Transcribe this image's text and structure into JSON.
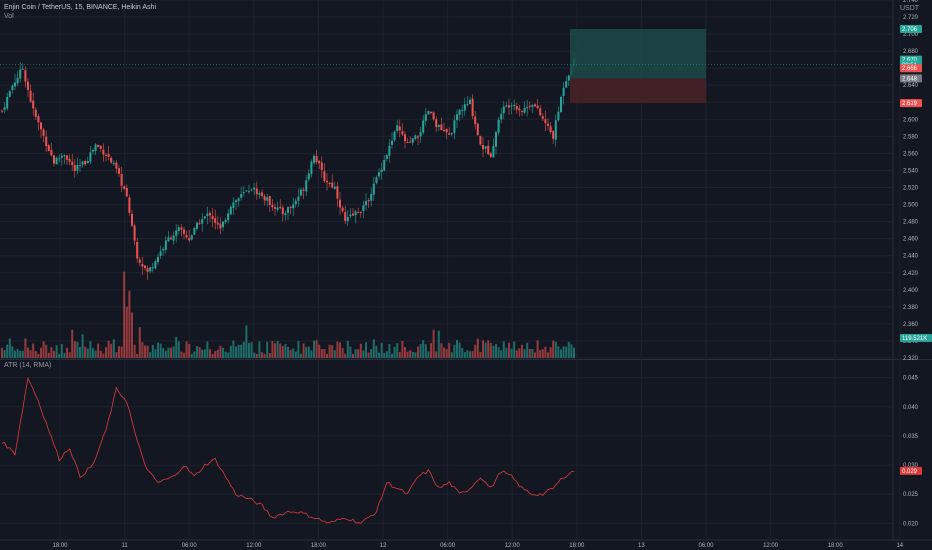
{
  "header": {
    "symbol_line": "Enjin Coin / TetherUS, 15, BINANCE, Heikin Ashi",
    "volume_label": "Vol",
    "currency": "USDT",
    "atr_label": "ATR (14, RMA)"
  },
  "colors": {
    "background": "#131722",
    "up": "#26a69a",
    "down": "#ef5350",
    "grid": "#1e222d",
    "atr_line": "#e03b3b",
    "profit_zone": "#1d4a48",
    "loss_zone": "#4a2327"
  },
  "price_axis": {
    "ticks": [
      "2.740",
      "2.720",
      "2.700",
      "2.680",
      "2.660",
      "2.640",
      "2.620",
      "2.600",
      "2.580",
      "2.560",
      "2.540",
      "2.520",
      "2.500",
      "2.480",
      "2.460",
      "2.440",
      "2.420",
      "2.400",
      "2.380",
      "2.360",
      "2.340",
      "2.320"
    ],
    "badges": [
      {
        "text": "2.706",
        "color": "#26a69a",
        "value": 2.706
      },
      {
        "text": "2.670",
        "color": "#26a69a",
        "value": 2.67
      },
      {
        "text": "08:51",
        "color": "#26a69a",
        "value": 2.664
      },
      {
        "text": "2.666",
        "color": "#ef5350",
        "value": 2.66
      },
      {
        "text": "2.648",
        "color": "#787b86",
        "value": 2.648
      },
      {
        "text": "2.619",
        "color": "#ef5350",
        "value": 2.619
      }
    ],
    "volume_badge": {
      "text": "119.521K",
      "color": "#26a69a"
    }
  },
  "atr_axis": {
    "ticks": [
      "0.045",
      "0.040",
      "0.035",
      "0.030",
      "0.025",
      "0.020"
    ],
    "badge": {
      "text": "0.029",
      "color": "#e03b3b",
      "value": 0.029
    }
  },
  "time_axis": {
    "labels": [
      "18:00",
      "11",
      "06:00",
      "12:00",
      "18:00",
      "12",
      "06:00",
      "12:00",
      "18:00",
      "13",
      "06:00",
      "12:00",
      "18:00",
      "14"
    ]
  },
  "chart_data": [
    {
      "type": "candlestick",
      "title": "Enjin Coin / TetherUS, 15, BINANCE, Heikin Ashi",
      "ylim": [
        2.32,
        2.74
      ],
      "keypoints": [
        [
          0,
          2.61
        ],
        [
          4,
          2.64
        ],
        [
          8,
          2.66
        ],
        [
          12,
          2.61
        ],
        [
          16,
          2.58
        ],
        [
          20,
          2.55
        ],
        [
          24,
          2.56
        ],
        [
          28,
          2.54
        ],
        [
          32,
          2.55
        ],
        [
          36,
          2.57
        ],
        [
          40,
          2.56
        ],
        [
          44,
          2.54
        ],
        [
          48,
          2.51
        ],
        [
          52,
          2.44
        ],
        [
          56,
          2.42
        ],
        [
          60,
          2.44
        ],
        [
          64,
          2.46
        ],
        [
          68,
          2.47
        ],
        [
          72,
          2.46
        ],
        [
          76,
          2.48
        ],
        [
          80,
          2.49
        ],
        [
          84,
          2.47
        ],
        [
          88,
          2.5
        ],
        [
          92,
          2.51
        ],
        [
          96,
          2.52
        ],
        [
          100,
          2.51
        ],
        [
          104,
          2.5
        ],
        [
          108,
          2.49
        ],
        [
          112,
          2.5
        ],
        [
          116,
          2.52
        ],
        [
          120,
          2.56
        ],
        [
          124,
          2.53
        ],
        [
          128,
          2.52
        ],
        [
          132,
          2.48
        ],
        [
          136,
          2.49
        ],
        [
          140,
          2.5
        ],
        [
          144,
          2.53
        ],
        [
          148,
          2.56
        ],
        [
          152,
          2.59
        ],
        [
          156,
          2.57
        ],
        [
          160,
          2.58
        ],
        [
          164,
          2.61
        ],
        [
          168,
          2.59
        ],
        [
          172,
          2.58
        ],
        [
          176,
          2.61
        ],
        [
          180,
          2.62
        ],
        [
          184,
          2.57
        ],
        [
          188,
          2.56
        ],
        [
          192,
          2.61
        ],
        [
          196,
          2.62
        ],
        [
          200,
          2.61
        ],
        [
          204,
          2.62
        ],
        [
          208,
          2.6
        ],
        [
          212,
          2.58
        ],
        [
          216,
          2.64
        ],
        [
          220,
          2.67
        ]
      ]
    },
    {
      "type": "bar",
      "name": "Vol",
      "last_value": "119.521K"
    },
    {
      "type": "line",
      "name": "ATR (14, RMA)",
      "ylim": [
        0.018,
        0.047
      ],
      "keypoints": [
        [
          0,
          0.034
        ],
        [
          5,
          0.032
        ],
        [
          10,
          0.045
        ],
        [
          14,
          0.041
        ],
        [
          18,
          0.036
        ],
        [
          22,
          0.031
        ],
        [
          26,
          0.033
        ],
        [
          30,
          0.028
        ],
        [
          35,
          0.03
        ],
        [
          40,
          0.036
        ],
        [
          44,
          0.043
        ],
        [
          48,
          0.041
        ],
        [
          52,
          0.034
        ],
        [
          56,
          0.029
        ],
        [
          60,
          0.027
        ],
        [
          66,
          0.028
        ],
        [
          70,
          0.03
        ],
        [
          74,
          0.028
        ],
        [
          78,
          0.03
        ],
        [
          82,
          0.031
        ],
        [
          86,
          0.028
        ],
        [
          90,
          0.025
        ],
        [
          96,
          0.024
        ],
        [
          100,
          0.023
        ],
        [
          104,
          0.021
        ],
        [
          110,
          0.022
        ],
        [
          114,
          0.022
        ],
        [
          120,
          0.021
        ],
        [
          126,
          0.02
        ],
        [
          132,
          0.021
        ],
        [
          138,
          0.02
        ],
        [
          144,
          0.022
        ],
        [
          148,
          0.027
        ],
        [
          152,
          0.026
        ],
        [
          156,
          0.025
        ],
        [
          160,
          0.028
        ],
        [
          164,
          0.029
        ],
        [
          168,
          0.026
        ],
        [
          172,
          0.027
        ],
        [
          176,
          0.025
        ],
        [
          180,
          0.026
        ],
        [
          184,
          0.028
        ],
        [
          188,
          0.026
        ],
        [
          192,
          0.029
        ],
        [
          196,
          0.028
        ],
        [
          200,
          0.026
        ],
        [
          204,
          0.025
        ],
        [
          208,
          0.025
        ],
        [
          212,
          0.026
        ],
        [
          216,
          0.028
        ],
        [
          220,
          0.029
        ]
      ],
      "last_value": 0.029
    },
    {
      "type": "position",
      "entry": 2.648,
      "target": 2.706,
      "stop": 2.619
    }
  ]
}
